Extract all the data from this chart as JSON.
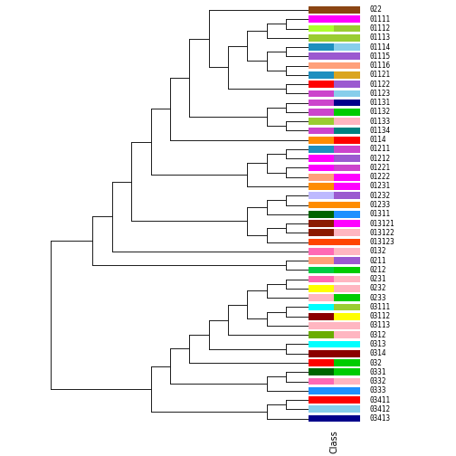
{
  "labels": [
    "022",
    "01111",
    "01112",
    "01113",
    "01114",
    "01115",
    "01116",
    "01121",
    "01122",
    "01123",
    "01131",
    "01132",
    "01133",
    "01134",
    "0114",
    "01211",
    "01212",
    "01221",
    "01222",
    "01231",
    "01232",
    "01233",
    "01311",
    "013121",
    "013122",
    "013123",
    "0132",
    "0211",
    "0212",
    "0231",
    "0232",
    "0233",
    "03111",
    "03112",
    "03113",
    "0312",
    "0313",
    "0314",
    "032",
    "0331",
    "0332",
    "0333",
    "03411",
    "03412",
    "03413"
  ],
  "box1_colors": [
    "#8B4513",
    "#FF00FF",
    "#ADFF2F",
    "#9ACD32",
    "#1E8FBF",
    "#9B59D0",
    "#FFA07A",
    "#1E8FBF",
    "#FF0000",
    "#CC44CC",
    "#CC44CC",
    "#CC44CC",
    "#9ACD32",
    "#CC44CC",
    "#FF8C00",
    "#1E8FBF",
    "#FF00FF",
    "#FF00FF",
    "#FFA07A",
    "#FF8C00",
    "#BDB9FF",
    "#FF8C00",
    "#006400",
    "#8B1A00",
    "#8B1A00",
    "#FF4500",
    "#FF69B4",
    "#FFA07A",
    "#00CC44",
    "#FF69B4",
    "#FFFF00",
    "#FFB6C1",
    "#00FFFF",
    "#8B0000",
    "#FFB6C1",
    "#6BAD00",
    "#00FFFF",
    "#8B0000",
    "#FF0000",
    "#006400",
    "#FF69B4",
    "#1E90FF",
    "#FF0000",
    "#87CEEB",
    "#00008B"
  ],
  "box2_colors": [
    "#8B4513",
    "#FF00FF",
    "#9ACD32",
    "#9ACD32",
    "#87CEEB",
    "#9B59D0",
    "#FFA07A",
    "#DAA520",
    "#9B59D0",
    "#87CEEB",
    "#00008B",
    "#00CC00",
    "#FFB6C1",
    "#008080",
    "#FF0000",
    "#CC44CC",
    "#9B59D0",
    "#CC44CC",
    "#FF00FF",
    "#FF00FF",
    "#9B59D0",
    "#FF8C00",
    "#1E90FF",
    "#FF00FF",
    "#FFB6C1",
    "#FF4500",
    "#FFB6C1",
    "#9B59D0",
    "#00CC00",
    "#FFB6C1",
    "#FFB6C1",
    "#00CC00",
    "#9ACD32",
    "#FFFF00",
    "#FFB6C1",
    "#FFB6C1",
    "#00FFFF",
    "#8B0000",
    "#00CC00",
    "#00CC00",
    "#FFB6C1",
    "#1E90FF",
    "#FF0000",
    "#87CEEB",
    "#00008B"
  ],
  "dendrogram_color": "#1A1A1A",
  "background_color": "#FFFFFF",
  "xlabel": "Class"
}
